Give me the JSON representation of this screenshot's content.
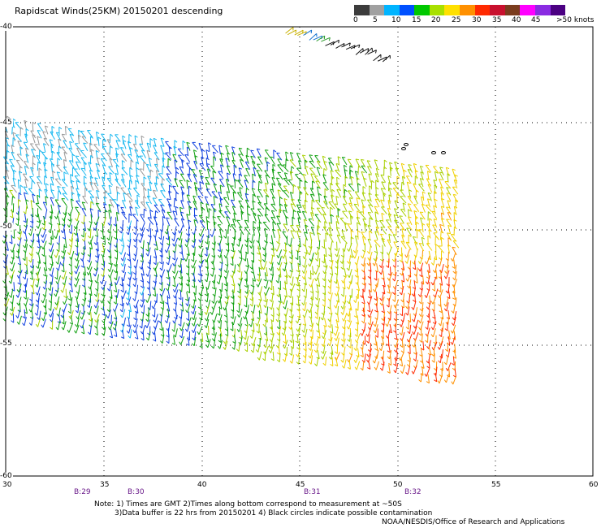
{
  "title": "Rapidscat Winds(25KM) 20150201 descending",
  "colorbar": {
    "labels": [
      "0",
      "5",
      "10",
      "15",
      "20",
      "25",
      "30",
      "35",
      "40",
      "45",
      ">50 knots"
    ],
    "colors": [
      "#3c3c3c",
      "#a0a0a0",
      "#00b4ff",
      "#0050ff",
      "#00c800",
      "#a8e000",
      "#ffe000",
      "#ff9000",
      "#ff2a00",
      "#c8102e",
      "#7a3c1e",
      "#ff00ff",
      "#8a2be2",
      "#4b0082"
    ]
  },
  "lat_labels": [
    "-40",
    "-45",
    "-50",
    "-55",
    "-60"
  ],
  "lon_labels": [
    "30",
    "35",
    "40",
    "45",
    "50",
    "55",
    "60"
  ],
  "rev_labels": [
    "B:29",
    "B:30",
    "B:31",
    "B:32"
  ],
  "notes": {
    "line1": "Note: 1) Times are GMT 2)Times along bottom correspond to measurement at ~50S",
    "line2": "3)Data buffer is 22 hrs from 20150201 4) Black circles indicate possible contamination",
    "line3": "NOAA/NESDIS/Office of Research and Applications"
  }
}
